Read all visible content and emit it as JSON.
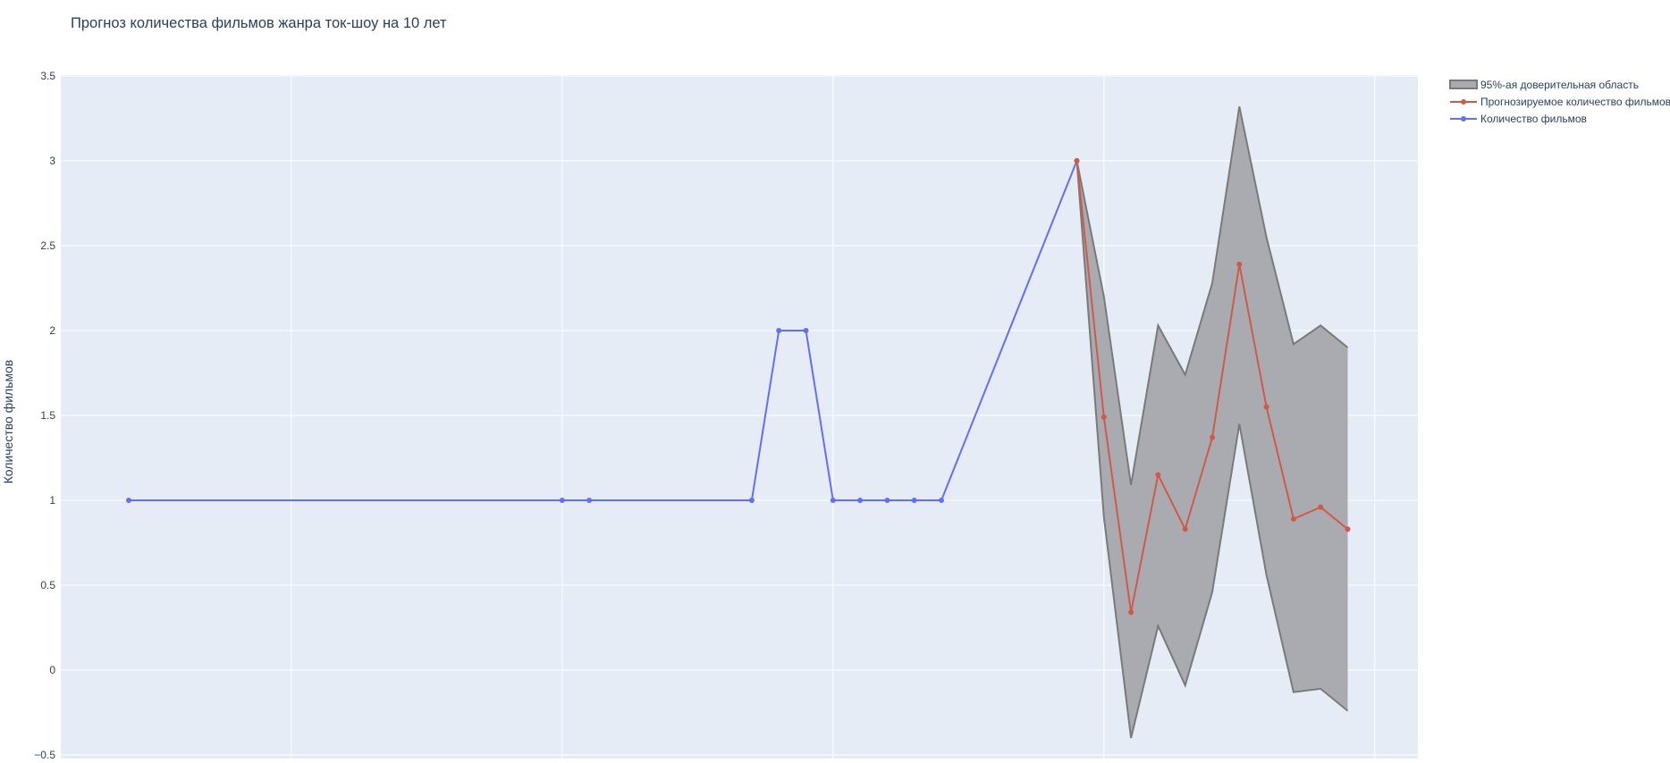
{
  "chart_data": {
    "type": "line",
    "title": "Прогноз количества фильмов жанра ток-шоу на 10 лет",
    "xlabel": "",
    "ylabel": "Количество фильмов",
    "xlim": [
      0,
      48
    ],
    "ylim": [
      -0.5,
      3.5
    ],
    "yticks": [
      -0.5,
      0,
      0.5,
      1,
      1.5,
      2,
      2.5,
      3,
      3.5
    ],
    "ytick_labels": [
      "−0.5",
      "0",
      "0.5",
      "1",
      "1.5",
      "2",
      "2.5",
      "3",
      "3.5"
    ],
    "xgrid": [
      6,
      16,
      26,
      36,
      46
    ],
    "grid": true,
    "legend_position": "top-right",
    "colors": {
      "plot_bg": "#e5ecf6",
      "grid": "#ffffff",
      "band_fill": "#a9abb0",
      "band_line": "#7a7a7a",
      "forecast": "#d05a4a",
      "actual": "#636efa"
    },
    "series": [
      {
        "name": "95%-ая доверительная область",
        "kind": "band",
        "x": [
          35,
          36,
          37,
          38,
          39,
          40,
          41,
          42,
          43,
          44,
          45
        ],
        "upper": [
          3.0,
          2.2,
          1.09,
          2.03,
          1.74,
          2.28,
          3.32,
          2.55,
          1.92,
          2.03,
          1.9
        ],
        "lower": [
          3.0,
          0.9,
          -0.4,
          0.26,
          -0.09,
          0.46,
          1.45,
          0.56,
          -0.13,
          -0.11,
          -0.24
        ]
      },
      {
        "name": "Прогнозируемое количество фильмов",
        "kind": "line",
        "x": [
          35,
          36,
          37,
          38,
          39,
          40,
          41,
          42,
          43,
          44,
          45
        ],
        "values": [
          3.0,
          1.49,
          0.34,
          1.15,
          0.83,
          1.37,
          2.39,
          1.55,
          0.89,
          0.96,
          0.83
        ]
      },
      {
        "name": "Количество фильмов",
        "kind": "line",
        "x": [
          0,
          16,
          17,
          23,
          24,
          25,
          26,
          27,
          28,
          29,
          30,
          35
        ],
        "values": [
          1,
          1,
          1,
          1,
          2,
          2,
          1,
          1,
          1,
          1,
          1,
          3
        ]
      }
    ]
  }
}
